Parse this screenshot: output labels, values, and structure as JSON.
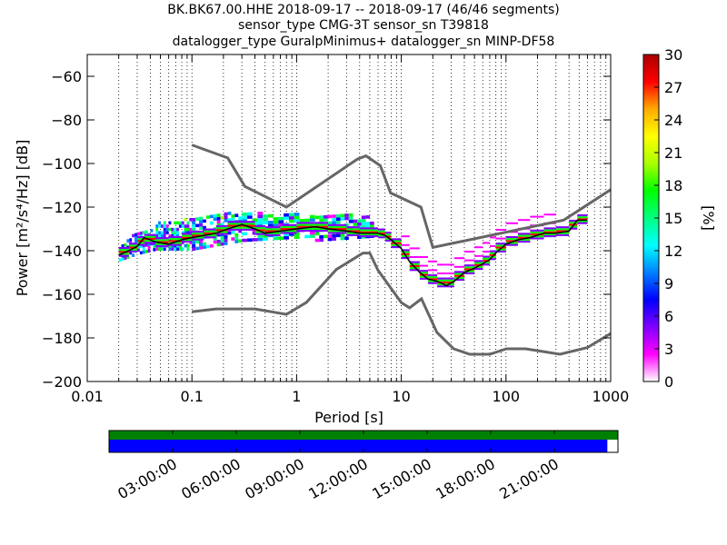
{
  "header": {
    "line1": "BK.BK67.00.HHE   2018-09-17 -- 2018-09-17  (46/46 segments)",
    "line2": "sensor_type CMG-3T sensor_sn T39818",
    "line3": "datalogger_type GuralpMinimus+ datalogger_sn MINP-DF58"
  },
  "chart_data": [
    {
      "type": "heatmap",
      "xlabel": "Period [s]",
      "ylabel": "Power [m²/s⁴/Hz] [dB]",
      "xscale": "log",
      "xlim": [
        0.01,
        1000
      ],
      "ylim": [
        -200,
        -50
      ],
      "xticks": [
        {
          "v": 0.01,
          "label": "0.01"
        },
        {
          "v": 0.1,
          "label": "0.1"
        },
        {
          "v": 1,
          "label": "1"
        },
        {
          "v": 10,
          "label": "10"
        },
        {
          "v": 100,
          "label": "100"
        },
        {
          "v": 1000,
          "label": "1000"
        }
      ],
      "yticks": [
        {
          "v": -200,
          "label": "−200"
        },
        {
          "v": -180,
          "label": "−180"
        },
        {
          "v": -160,
          "label": "−160"
        },
        {
          "v": -140,
          "label": "−140"
        },
        {
          "v": -120,
          "label": "−120"
        },
        {
          "v": -100,
          "label": "−100"
        },
        {
          "v": -80,
          "label": "−80"
        },
        {
          "v": -60,
          "label": "−60"
        }
      ],
      "colorbar": {
        "label": "[%]",
        "range": [
          0,
          30
        ],
        "ticks": [
          "0",
          "3",
          "6",
          "9",
          "12",
          "15",
          "18",
          "21",
          "24",
          "27",
          "30"
        ],
        "colormap": [
          "#ffffff",
          "#ff00ff",
          "#8000ff",
          "#0000ff",
          "#0080ff",
          "#00ffff",
          "#00ff80",
          "#00ff00",
          "#aaff00",
          "#ffff00",
          "#ffaa00",
          "#ff0000",
          "#aa0000"
        ]
      },
      "mode_line": {
        "periods": [
          0.02,
          0.025,
          0.03,
          0.035,
          0.045,
          0.06,
          0.08,
          0.1,
          0.13,
          0.17,
          0.22,
          0.3,
          0.4,
          0.5,
          0.7,
          1.0,
          1.5,
          2.0,
          3.0,
          4.0,
          5.0,
          6.0,
          7.0,
          8.0,
          10,
          12,
          15,
          18,
          22,
          27,
          32,
          40,
          50,
          60,
          70,
          80,
          100,
          130,
          170,
          230,
          300,
          400,
          480,
          600
        ],
        "db": [
          -142,
          -140,
          -138,
          -134,
          -136,
          -137,
          -135,
          -134,
          -133,
          -132,
          -130,
          -128,
          -130,
          -132,
          -131,
          -130,
          -129,
          -130,
          -131,
          -132,
          -132,
          -132,
          -133,
          -135,
          -139,
          -145,
          -150,
          -153,
          -154,
          -156,
          -154,
          -150,
          -148,
          -146,
          -144,
          -141,
          -137,
          -135,
          -134,
          -132,
          -132,
          -131,
          -126,
          -126
        ]
      },
      "models": {
        "nhnm": {
          "periods": [
            0.1,
            0.22,
            0.32,
            0.8,
            3.8,
            4.6,
            6.3,
            7.9,
            15.4,
            20,
            354.8,
            1000
          ],
          "db": [
            -91.5,
            -97.4,
            -110.5,
            -120,
            -98,
            -96.5,
            -101,
            -113.5,
            -120,
            -138.5,
            -126,
            -112
          ]
        },
        "nlnm": {
          "periods": [
            0.1,
            0.17,
            0.4,
            0.8,
            1.24,
            2.4,
            4.3,
            5.0,
            6.0,
            10,
            12,
            15.6,
            21.9,
            31.6,
            45,
            70,
            101,
            154,
            328,
            600,
            1000
          ],
          "db": [
            -168,
            -166.7,
            -166.7,
            -169.2,
            -163.7,
            -148.6,
            -141.1,
            -141.1,
            -149,
            -163.8,
            -166.2,
            -162.1,
            -177.5,
            -185,
            -187.5,
            -187.5,
            -185,
            -185,
            -187.5,
            -184.4,
            -178
          ]
        }
      },
      "spread_bands": [
        {
          "p0": 0.02,
          "p1": 0.045,
          "low": [
            -145,
            -142,
            -140
          ],
          "high": [
            -138,
            -132,
            -130
          ]
        },
        {
          "p0": 0.045,
          "p1": 0.1,
          "low": [
            -140,
            -140,
            -140
          ],
          "high": [
            -128,
            -127,
            -126
          ]
        },
        {
          "p0": 0.1,
          "p1": 0.3,
          "low": [
            -140,
            -138,
            -136
          ],
          "high": [
            -126,
            -124,
            -123
          ]
        },
        {
          "p0": 0.3,
          "p1": 1.5,
          "low": [
            -136,
            -135,
            -134
          ],
          "high": [
            -123,
            -124,
            -124
          ]
        },
        {
          "p0": 1.5,
          "p1": 5.5,
          "low": [
            -136,
            -135,
            -134
          ],
          "high": [
            -124,
            -124,
            -125
          ]
        }
      ]
    },
    {
      "type": "timeline",
      "start_hour": 0,
      "end_hour": 24,
      "tick_labels": [
        "03:00:00",
        "06:00:00",
        "09:00:00",
        "12:00:00",
        "15:00:00",
        "18:00:00",
        "21:00:00"
      ],
      "tick_hours": [
        3,
        6,
        9,
        12,
        15,
        18,
        21
      ],
      "available_color": "#008000",
      "used_color": "#0000ff",
      "available_end_hour": 24,
      "used_end_hour": 23.5
    }
  ]
}
